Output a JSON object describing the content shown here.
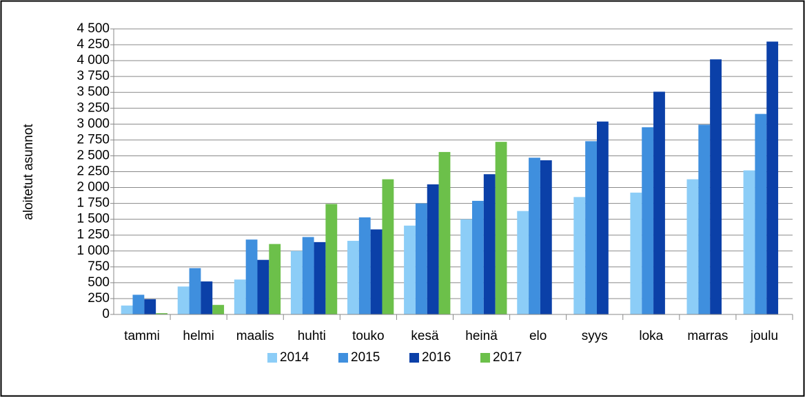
{
  "chart_data": {
    "type": "bar",
    "ylabel": "aloitetut asunnot",
    "categories": [
      "tammi",
      "helmi",
      "maalis",
      "huhti",
      "touko",
      "kesä",
      "heinä",
      "elo",
      "syys",
      "loka",
      "marras",
      "joulu"
    ],
    "series": [
      {
        "name": "2014",
        "color": "#8ccdf7",
        "values": [
          140,
          440,
          550,
          1000,
          1160,
          1400,
          1500,
          1630,
          1850,
          1920,
          2130,
          2270
        ]
      },
      {
        "name": "2015",
        "color": "#3f8fde",
        "values": [
          310,
          730,
          1180,
          1220,
          1530,
          1750,
          1790,
          2470,
          2730,
          2950,
          2990,
          3160
        ]
      },
      {
        "name": "2016",
        "color": "#0b40a8",
        "values": [
          240,
          520,
          860,
          1140,
          1340,
          2050,
          2210,
          2430,
          3040,
          3510,
          4020,
          4300
        ]
      },
      {
        "name": "2017",
        "color": "#6cc04a",
        "values": [
          20,
          150,
          1110,
          1740,
          2130,
          2560,
          2720,
          null,
          null,
          null,
          null,
          null
        ]
      }
    ],
    "ylim": [
      0,
      4500
    ],
    "yticks": [
      0,
      250,
      500,
      750,
      {
        "value": 1000,
        "label": "1 000"
      },
      {
        "value": 1250,
        "label": "1 250"
      },
      {
        "value": 1500,
        "label": "1 500"
      },
      {
        "value": 1750,
        "label": "1 750"
      },
      {
        "value": 2000,
        "label": "2 000"
      },
      {
        "value": 2250,
        "label": "2 250"
      },
      {
        "value": 2500,
        "label": "2 500"
      },
      {
        "value": 2750,
        "label": "2 750"
      },
      {
        "value": 3000,
        "label": "3 000"
      },
      {
        "value": 3250,
        "label": "3 250"
      },
      {
        "value": 3500,
        "label": "3 500"
      },
      {
        "value": 3750,
        "label": "3 750"
      },
      {
        "value": 4000,
        "label": "4 000"
      },
      {
        "value": 4250,
        "label": "4 250"
      },
      {
        "value": 4500,
        "label": "4 500"
      }
    ],
    "grid": true,
    "legend": "bottom"
  }
}
